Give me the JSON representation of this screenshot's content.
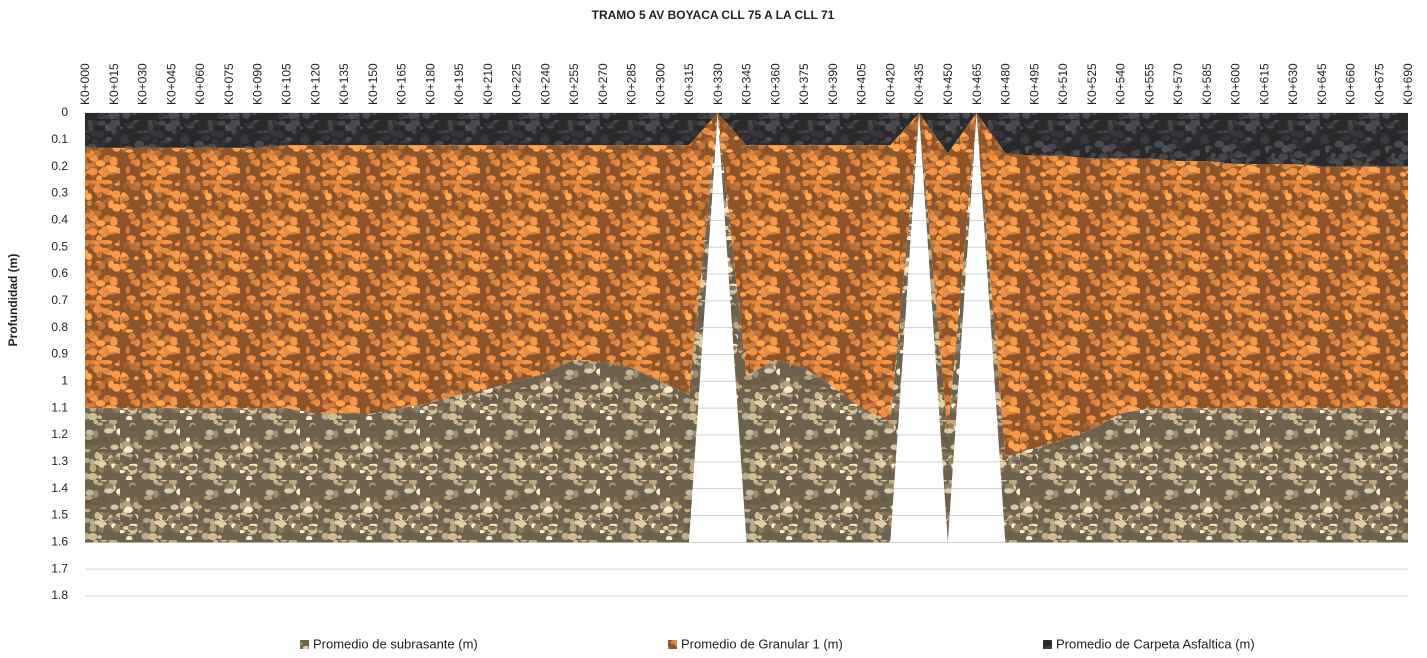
{
  "chart_data": {
    "type": "stacked_area",
    "title": "TRAMO 5 AV BOYACA CLL 75 A LA CLL 71",
    "y_label": "Profundidad (m)",
    "categories": [
      "K0+000",
      "K0+015",
      "K0+030",
      "K0+045",
      "K0+060",
      "K0+075",
      "K0+090",
      "K0+105",
      "K0+120",
      "K0+135",
      "K0+150",
      "K0+165",
      "K0+180",
      "K0+195",
      "K0+210",
      "K0+225",
      "K0+240",
      "K0+255",
      "K0+270",
      "K0+285",
      "K0+300",
      "K0+315",
      "K0+330",
      "K0+345",
      "K0+360",
      "K0+375",
      "K0+390",
      "K0+405",
      "K0+420",
      "K0+435",
      "K0+450",
      "K0+465",
      "K0+480",
      "K0+495",
      "K0+510",
      "K0+525",
      "K0+540",
      "K0+555",
      "K0+570",
      "K0+585",
      "K0+600",
      "K0+615",
      "K0+630",
      "K0+645",
      "K0+660",
      "K0+675",
      "K0+690"
    ],
    "series": [
      {
        "name": "Promedio de Carpeta Asfaltica (m)",
        "color": "#3a3a3e",
        "values": [
          0.13,
          0.13,
          0.13,
          0.13,
          0.13,
          0.13,
          0.13,
          0.12,
          0.12,
          0.12,
          0.12,
          0.12,
          0.12,
          0.12,
          0.12,
          0.12,
          0.12,
          0.12,
          0.12,
          0.12,
          0.12,
          0.12,
          0,
          0.12,
          0.12,
          0.12,
          0.12,
          0.12,
          0.12,
          0,
          0.15,
          0,
          0.15,
          0.16,
          0.16,
          0.17,
          0.17,
          0.17,
          0.18,
          0.18,
          0.19,
          0.19,
          0.19,
          0.2,
          0.2,
          0.2,
          0.2
        ]
      },
      {
        "name": "Promedio de Granular 1 (m)",
        "color": "#c9793a",
        "values": [
          0.97,
          0.97,
          0.97,
          0.97,
          0.97,
          0.97,
          0.97,
          0.98,
          1.0,
          1.0,
          1.0,
          0.98,
          0.96,
          0.93,
          0.91,
          0.88,
          0.85,
          0.8,
          0.81,
          0.83,
          0.88,
          0.93,
          0,
          0.86,
          0.8,
          0.83,
          0.9,
          0.98,
          1.03,
          0,
          1.05,
          0,
          1.13,
          1.09,
          1.06,
          1.01,
          0.95,
          0.93,
          0.92,
          0.92,
          0.91,
          0.91,
          0.91,
          0.9,
          0.9,
          0.9,
          0.9
        ]
      },
      {
        "name": "Promedio de subrasante (m)",
        "color": "#9c8c6e",
        "values": [
          0.5,
          0.5,
          0.5,
          0.5,
          0.5,
          0.5,
          0.5,
          0.5,
          0.48,
          0.48,
          0.48,
          0.5,
          0.52,
          0.55,
          0.57,
          0.6,
          0.63,
          0.68,
          0.67,
          0.65,
          0.6,
          0.55,
          0,
          0.62,
          0.68,
          0.65,
          0.58,
          0.5,
          0.45,
          0,
          0.4,
          0,
          0.32,
          0.35,
          0.38,
          0.42,
          0.48,
          0.5,
          0.5,
          0.5,
          0.5,
          0.5,
          0.5,
          0.5,
          0.5,
          0.5,
          0.5
        ]
      }
    ],
    "legend_order": [
      2,
      1,
      0
    ],
    "ylim": [
      0,
      1.8
    ],
    "y_inverted": true,
    "yticks": [
      0,
      0.1,
      0.2,
      0.3,
      0.4,
      0.5,
      0.6,
      0.7,
      0.8,
      0.9,
      1,
      1.1,
      1.2,
      1.3,
      1.4,
      1.5,
      1.6,
      1.7,
      1.8
    ],
    "grid": true,
    "legend": "bottom"
  }
}
